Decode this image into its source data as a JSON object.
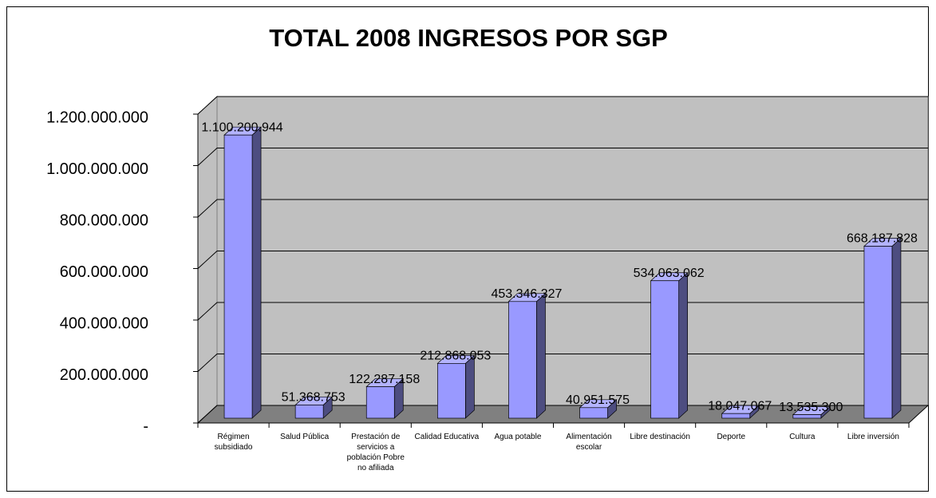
{
  "chart_data": {
    "type": "bar3d",
    "title": "TOTAL 2008 INGRESOS POR SGP",
    "categories": [
      "Régimen subsidiado",
      "Salud Pública",
      "Prestación de servicios a población Pobre no afiliada",
      "Calidad Educativa",
      "Agua potable",
      "Alimentación escolar",
      "Libre destinación",
      "Deporte",
      "Cultura",
      "Libre inversión"
    ],
    "values": [
      1100200944,
      51368753,
      122287158,
      212868053,
      453346327,
      40951575,
      534063062,
      18047067,
      13535300,
      668187828
    ],
    "value_labels": [
      "1.100.200.944",
      "51.368.753",
      "122.287.158",
      "212.868.053",
      "453.346.327",
      "40.951.575",
      "534.063.062",
      "18.047.067",
      "13.535.300",
      "668.187.828"
    ],
    "color": "#9999ff",
    "ylim": [
      0,
      1200000000
    ],
    "yticks": [
      {
        "value": 0,
        "label": "-"
      },
      {
        "value": 200000000,
        "label": "200.000.000"
      },
      {
        "value": 400000000,
        "label": "400.000.000"
      },
      {
        "value": 600000000,
        "label": "600.000.000"
      },
      {
        "value": 800000000,
        "label": "800.000.000"
      },
      {
        "value": 1000000000,
        "label": "1.000.000.000"
      },
      {
        "value": 1200000000,
        "label": "1.200.000.000"
      }
    ],
    "grid": true
  }
}
